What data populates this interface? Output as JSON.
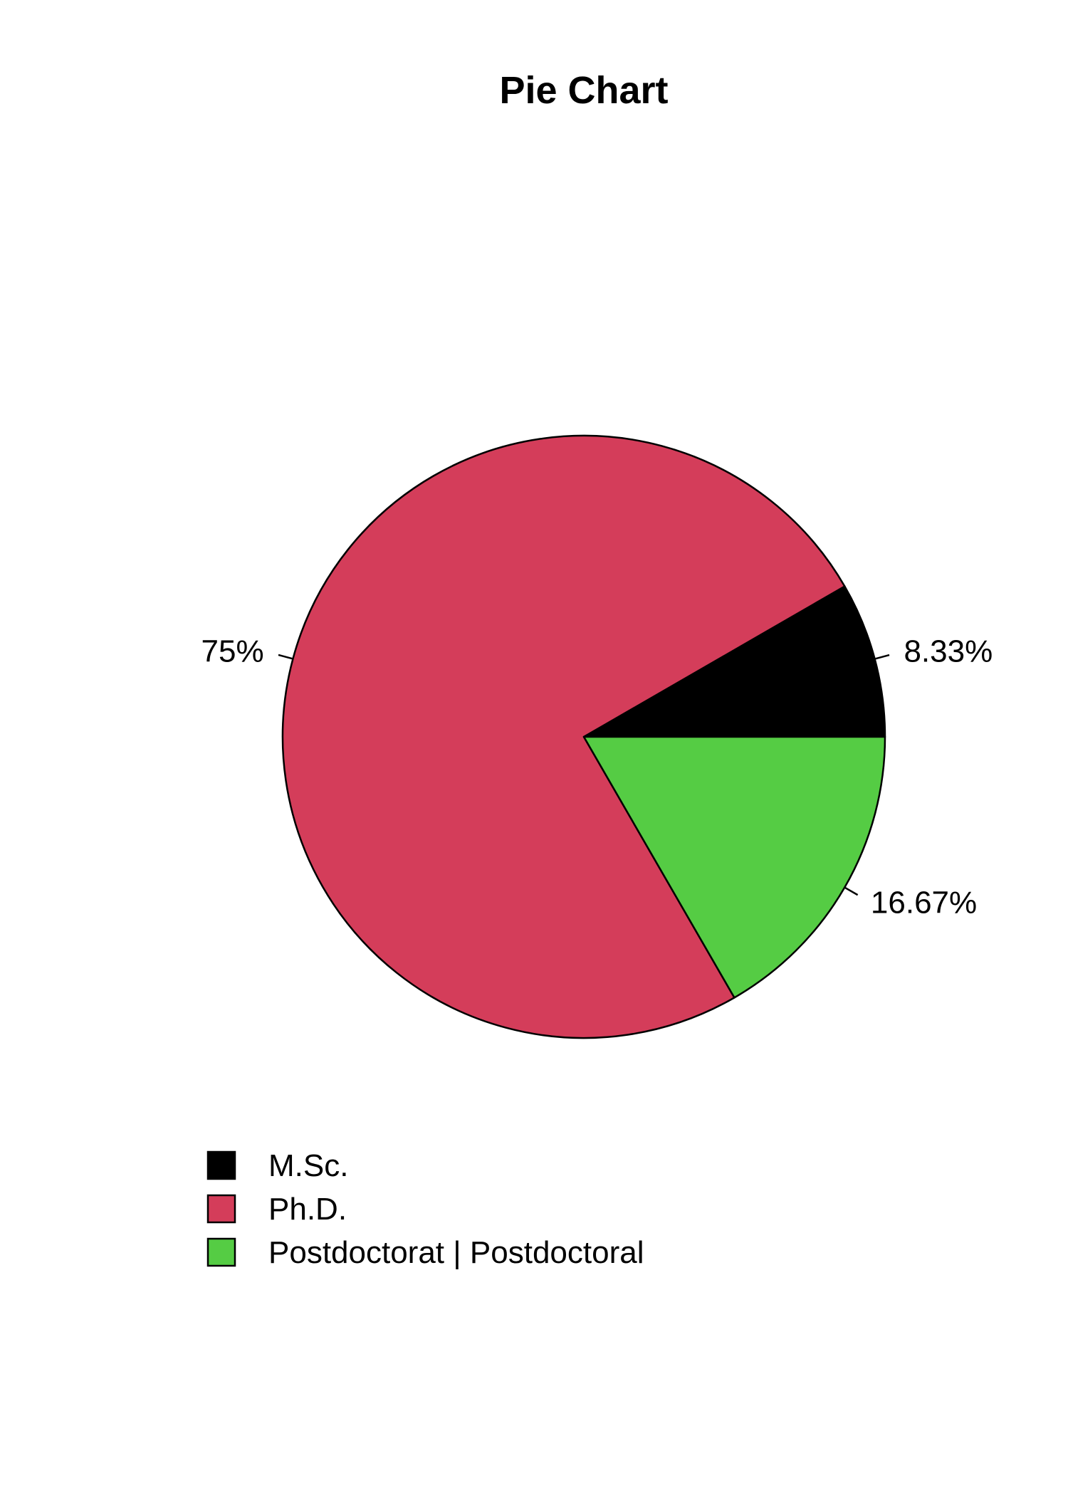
{
  "chart_data": {
    "type": "pie",
    "title": "Pie Chart",
    "categories": [
      "M.Sc.",
      "Ph.D.",
      "Postdoctorat | Postdoctoral"
    ],
    "values": [
      8.33,
      75,
      16.67
    ],
    "labels": [
      "8.33%",
      "75%",
      "16.67%"
    ],
    "colors": [
      "#000000",
      "#D43D5A",
      "#55CC44"
    ],
    "start_angle_deg": 0,
    "direction": "counterclockwise",
    "legend": {
      "position": "bottom-left",
      "entries": [
        "M.Sc.",
        "Ph.D.",
        "Postdoctorat | Postdoctoral"
      ]
    }
  }
}
